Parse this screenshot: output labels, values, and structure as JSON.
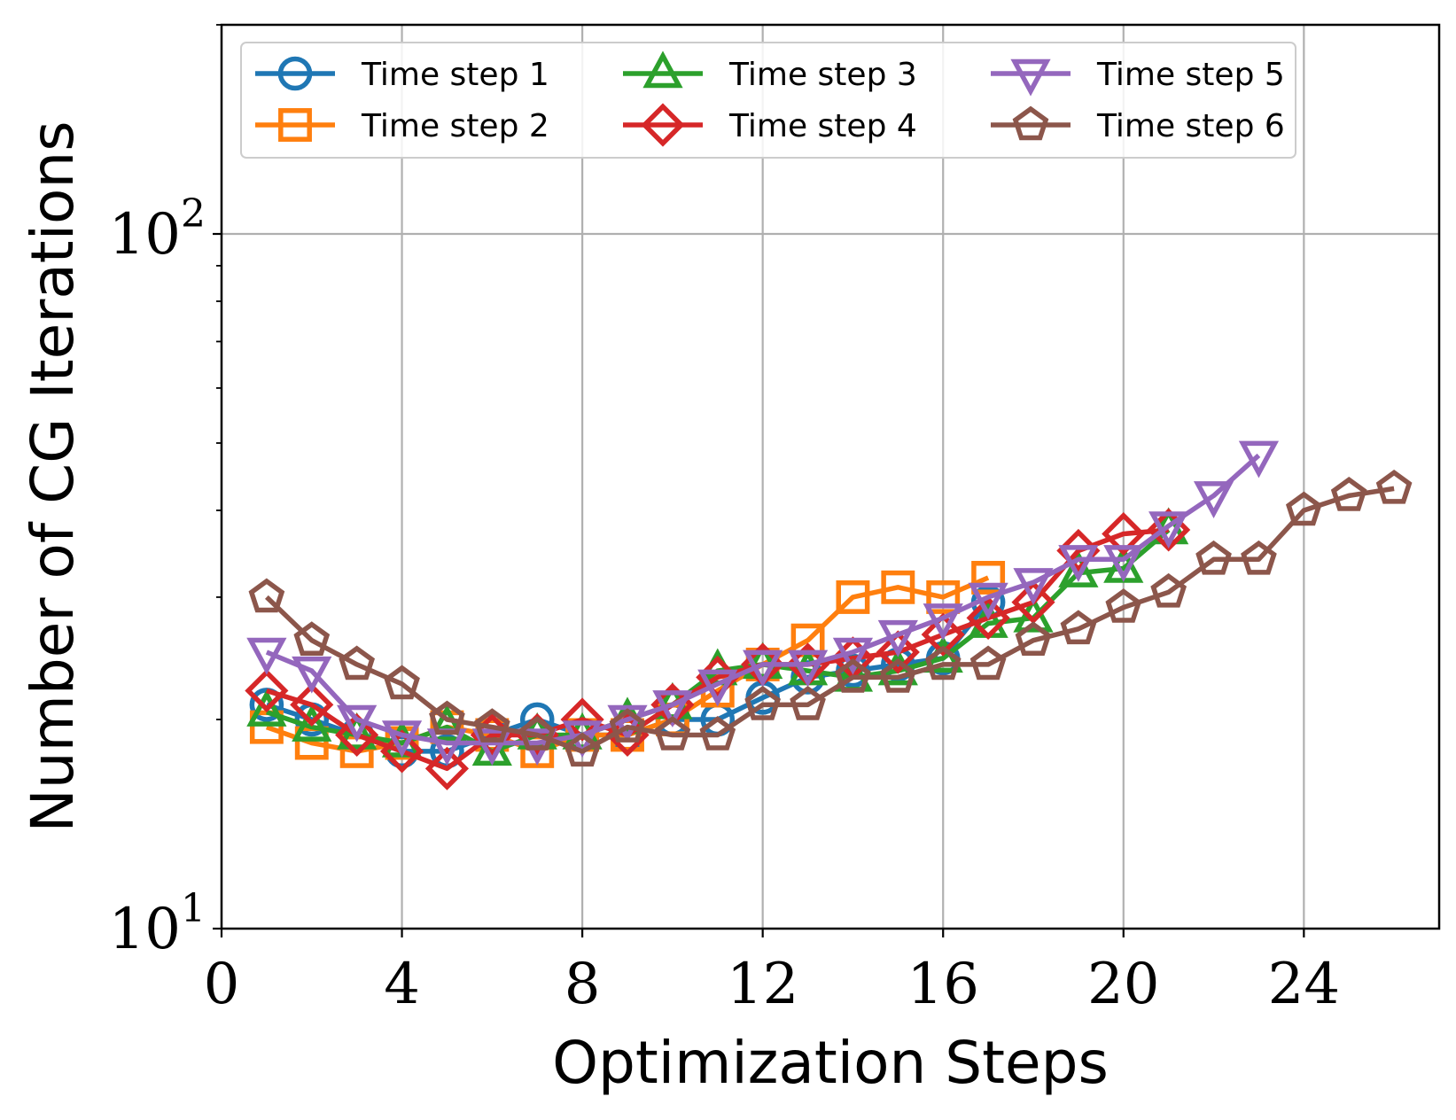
{
  "chart_data": {
    "type": "line",
    "title": "",
    "xlabel": "Optimization Steps",
    "ylabel": "Number of CG Iterations",
    "xlim": [
      0,
      27
    ],
    "ylim": [
      10,
      200
    ],
    "yscale": "log",
    "grid": true,
    "x_ticks": [
      0,
      4,
      8,
      12,
      16,
      20,
      24
    ],
    "x_tick_labels": [
      "0",
      "4",
      "8",
      "12",
      "16",
      "20",
      "24"
    ],
    "y_ticks": [
      {
        "value": 100,
        "base": "10",
        "exp": "2"
      },
      {
        "value": 10,
        "base": "10",
        "exp": "1"
      }
    ],
    "legend": {
      "location": "top",
      "columns": 3
    },
    "series": [
      {
        "name": "Time step 1",
        "color": "#1f77b4",
        "marker": "circle",
        "x": [
          1,
          2,
          3,
          4,
          5,
          6,
          7,
          8,
          9,
          10,
          11,
          12,
          13,
          14,
          15,
          16,
          17
        ],
        "y": [
          21,
          20,
          19,
          18,
          18,
          19,
          20,
          19,
          19,
          20,
          20,
          21.5,
          23,
          23.5,
          24,
          24.5,
          29.5
        ]
      },
      {
        "name": "Time step 2",
        "color": "#ff7f0e",
        "marker": "square",
        "x": [
          1,
          2,
          3,
          4,
          5,
          6,
          7,
          8,
          9,
          10,
          11,
          12,
          13,
          14,
          15,
          16,
          17
        ],
        "y": [
          19.5,
          18.5,
          18,
          18.5,
          19.5,
          19,
          18,
          19,
          19,
          20,
          22,
          24,
          26,
          30,
          31,
          30,
          32
        ]
      },
      {
        "name": "Time step 3",
        "color": "#2ca02c",
        "marker": "triangle-up",
        "x": [
          1,
          2,
          3,
          4,
          5,
          6,
          7,
          8,
          9,
          10,
          11,
          12,
          13,
          14,
          15,
          16,
          17,
          18,
          19,
          20,
          21
        ],
        "y": [
          20.5,
          19.5,
          19,
          18.5,
          19.5,
          18,
          19,
          19,
          20,
          21,
          23.5,
          24,
          23.5,
          23,
          23.5,
          24.5,
          27.5,
          28,
          32.5,
          33,
          37.5
        ]
      },
      {
        "name": "Time step 4",
        "color": "#d62728",
        "marker": "diamond",
        "x": [
          1,
          2,
          3,
          4,
          5,
          6,
          7,
          8,
          9,
          10,
          11,
          12,
          13,
          14,
          15,
          16,
          17,
          18,
          19,
          20,
          21
        ],
        "y": [
          22,
          21,
          19,
          18,
          17,
          19,
          19,
          20,
          19,
          21,
          23,
          24,
          24,
          24.5,
          25,
          26.5,
          28,
          29.5,
          35,
          37,
          37.5
        ]
      },
      {
        "name": "Time step 5",
        "color": "#9467bd",
        "marker": "triangle-down",
        "x": [
          1,
          2,
          3,
          4,
          5,
          6,
          7,
          8,
          9,
          10,
          11,
          12,
          13,
          14,
          15,
          16,
          17,
          18,
          19,
          20,
          21,
          22,
          23
        ],
        "y": [
          25,
          23.5,
          20,
          19,
          18.5,
          18.5,
          18.5,
          19,
          20,
          21,
          22.5,
          24,
          24,
          25,
          26.5,
          28,
          30,
          31.5,
          34,
          34,
          38,
          42,
          48
        ]
      },
      {
        "name": "Time step 6",
        "color": "#8c564b",
        "marker": "pentagon",
        "x": [
          1,
          2,
          3,
          4,
          5,
          6,
          7,
          8,
          9,
          10,
          11,
          12,
          13,
          14,
          15,
          16,
          17,
          18,
          19,
          20,
          21,
          22,
          23,
          24,
          25,
          26
        ],
        "y": [
          30,
          26,
          24,
          22.5,
          20,
          19.5,
          19,
          18,
          19.5,
          19,
          19,
          21,
          21,
          23,
          23,
          24,
          24,
          26,
          27,
          29,
          30.5,
          34,
          34,
          40,
          42,
          43
        ]
      }
    ]
  }
}
